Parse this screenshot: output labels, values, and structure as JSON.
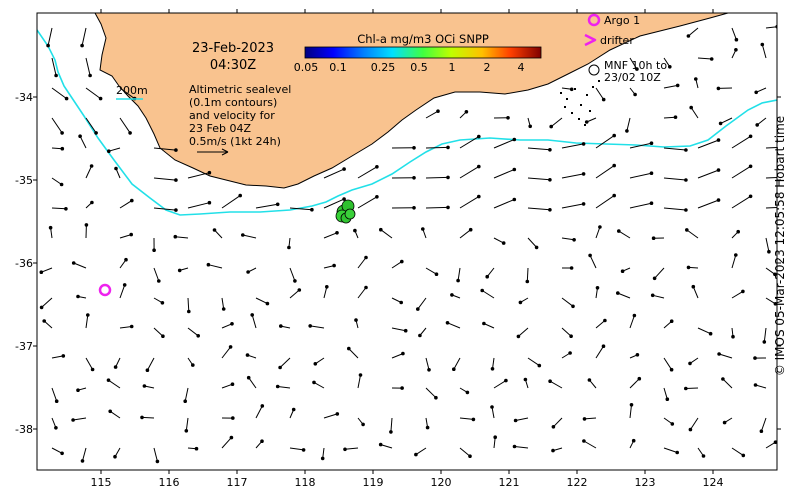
{
  "map": {
    "title_date": "23-Feb-2023",
    "title_time": "04:30Z",
    "info_lines": [
      "Altimetric sealevel",
      "(0.1m contours)",
      "and velocity for",
      "23 Feb 04Z",
      "0.5m/s (1kt 24h)"
    ],
    "depth_contour_label": "200m",
    "longitude_ticks": [
      "115",
      "116",
      "117",
      "118",
      "119",
      "120",
      "121",
      "122",
      "123",
      "124"
    ],
    "latitude_ticks": [
      "-34",
      "-35",
      "-36",
      "-37",
      "-38"
    ],
    "colorbar": {
      "title": "Chl-a mg/m3 OCi SNPP",
      "tick_labels": [
        "0.05",
        "0.1",
        "0.25",
        "0.5",
        "1",
        "2",
        "4"
      ]
    },
    "legend": {
      "argo": "Argo 1",
      "drifter": "drifter",
      "mnf_line1": "MNF 10h to",
      "mnf_line2": "23/02 10Z"
    },
    "credit": "© IMOS 05-Mar-2023 12:05:58 Hobart time",
    "colors": {
      "land": "#f9c38f",
      "contour_200m": "#22e0e8",
      "argo": "#ee22ee",
      "chl_patch": "#33cc33"
    }
  }
}
